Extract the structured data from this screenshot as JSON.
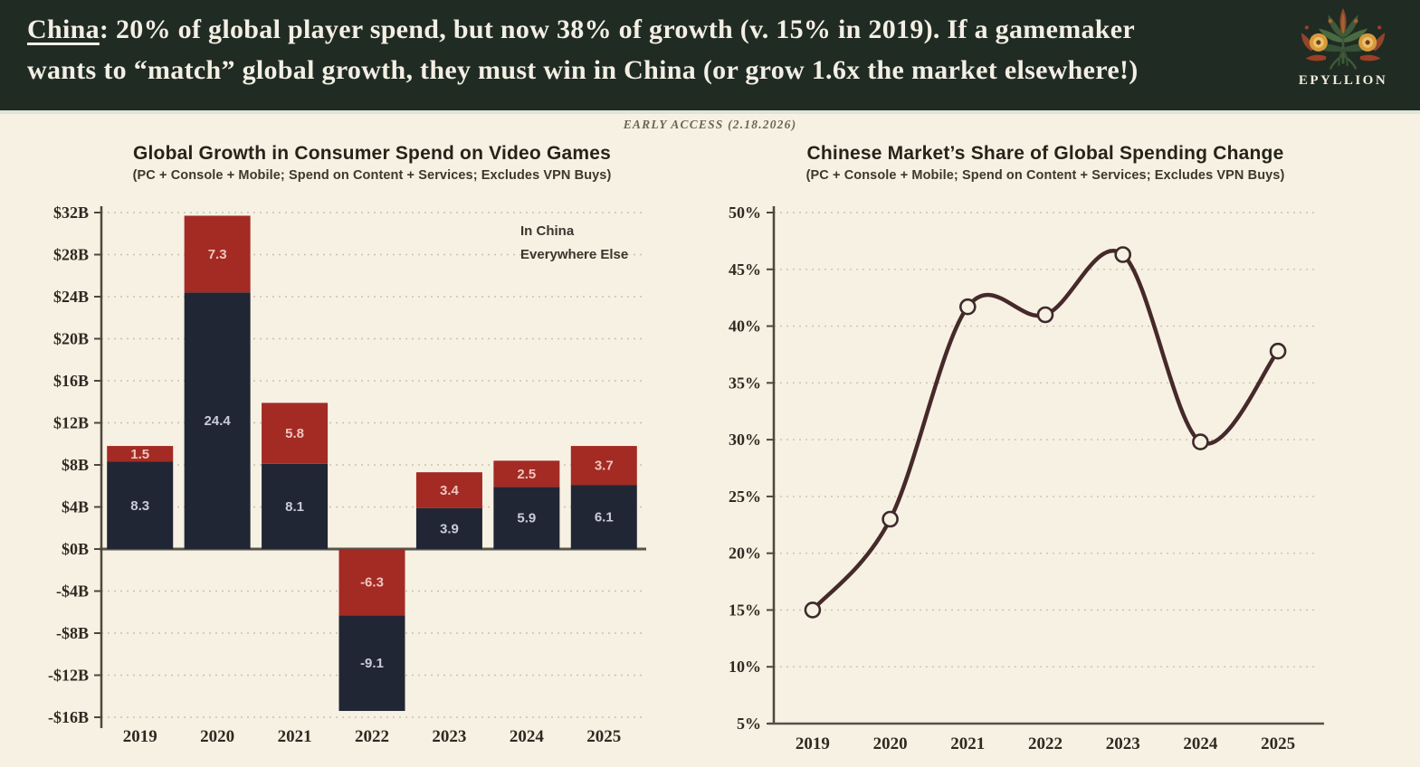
{
  "header": {
    "underlined_word": "China",
    "line1_rest": ": 20% of global player spend, but now 38% of growth (v. 15% in 2019). If a gamemaker",
    "line2": "wants to “match” global growth, they must win in China (or grow 1.6x the market elsewhere!)"
  },
  "brand": {
    "name": "EPYLLION",
    "logo_icon": "floral-emblem-icon"
  },
  "banner": {
    "text": "EARLY ACCESS (2.18.2026)"
  },
  "colors": {
    "header_bg": "#202b23",
    "page_bg": "#f7f1e3",
    "bar_dark": "#212634",
    "bar_red": "#a32b24",
    "line_maroon": "#46292b",
    "grid": "#c9c2af",
    "axis": "#4d473c"
  },
  "chart_data": [
    {
      "type": "bar",
      "stacked": true,
      "title": "Global Growth in Consumer Spend on Video Games",
      "subtitle": "(PC + Console + Mobile; Spend on Content + Services; Excludes VPN Buys)",
      "categories": [
        "2019",
        "2020",
        "2021",
        "2022",
        "2023",
        "2024",
        "2025"
      ],
      "series": [
        {
          "name": "Everywhere Else",
          "color": "#212634",
          "values": [
            8.3,
            24.4,
            8.1,
            -9.1,
            3.9,
            5.9,
            6.1
          ]
        },
        {
          "name": "In China",
          "color": "#a32b24",
          "values": [
            1.5,
            7.3,
            5.8,
            -6.3,
            3.4,
            2.5,
            3.7
          ]
        }
      ],
      "ylim": [
        -16,
        32
      ],
      "ytick_step": 4,
      "yticks": [
        "$32B",
        "$28B",
        "$24B",
        "$20B",
        "$16B",
        "$12B",
        "$8B",
        "$4B",
        "$0B",
        "-$4B",
        "-$8B",
        "-$12B",
        "-$16B"
      ],
      "legend_position": "top-right",
      "grid": "dashed-horizontal"
    },
    {
      "type": "line",
      "title": "Chinese Market’s Share of Global Spending Change",
      "subtitle": "(PC + Console + Mobile; Spend on Content + Services; Excludes VPN Buys)",
      "x": [
        "2019",
        "2020",
        "2021",
        "2022",
        "2023",
        "2024",
        "2025"
      ],
      "values": [
        15,
        23,
        41.7,
        41,
        46.3,
        29.8,
        37.8
      ],
      "ylim": [
        5,
        50
      ],
      "ytick_step": 5,
      "yticks": [
        "50%",
        "45%",
        "40%",
        "35%",
        "30%",
        "25%",
        "20%",
        "15%",
        "10%",
        "5%"
      ],
      "line_color": "#46292b",
      "marker": "open-circle",
      "grid": "dashed-horizontal"
    }
  ]
}
